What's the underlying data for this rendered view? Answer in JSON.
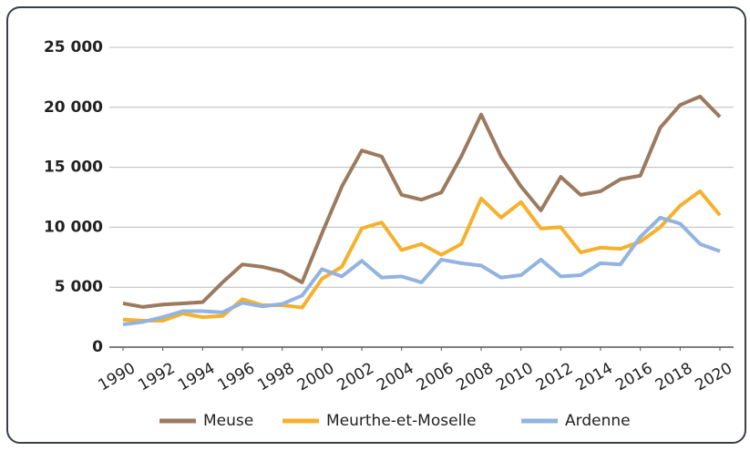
{
  "chart_data": {
    "type": "line",
    "x": [
      1990,
      1991,
      1992,
      1993,
      1994,
      1995,
      1996,
      1997,
      1998,
      1999,
      2000,
      2001,
      2002,
      2003,
      2004,
      2005,
      2006,
      2007,
      2008,
      2009,
      2010,
      2011,
      2012,
      2013,
      2014,
      2015,
      2016,
      2017,
      2018,
      2019,
      2020
    ],
    "xlim": [
      1990,
      2020
    ],
    "xticks": [
      1990,
      1992,
      1994,
      1996,
      1998,
      2000,
      2002,
      2004,
      2006,
      2008,
      2010,
      2012,
      2014,
      2016,
      2018,
      2020
    ],
    "ylim": [
      0,
      25000
    ],
    "yticks": [
      0,
      {
        "value": 5000,
        "label": "5 000"
      },
      {
        "value": 10000,
        "label": "10 000"
      },
      {
        "value": 15000,
        "label": "15 000"
      },
      {
        "value": 20000,
        "label": "20 000"
      },
      {
        "value": 25000,
        "label": "25 000"
      }
    ],
    "grid": true,
    "legend": "bottom",
    "series": [
      {
        "name": "Meuse",
        "color": "#9c7a5f",
        "values": [
          3650,
          3350,
          3550,
          3650,
          3750,
          5400,
          6900,
          6700,
          6300,
          5400,
          9500,
          13400,
          16400,
          15900,
          12700,
          12300,
          12900,
          15900,
          19400,
          15900,
          13400,
          11400,
          14200,
          12700,
          13000,
          14000,
          14300,
          18300,
          20200,
          20900,
          19200
        ]
      },
      {
        "name": "Meurthe-et-Moselle",
        "color": "#f5b12c",
        "values": [
          2300,
          2200,
          2200,
          2800,
          2500,
          2600,
          4000,
          3500,
          3500,
          3300,
          5700,
          6700,
          9900,
          10400,
          8100,
          8600,
          7700,
          8600,
          12400,
          10800,
          12100,
          9900,
          10000,
          7900,
          8300,
          8200,
          8800,
          10000,
          11800,
          13000,
          11000
        ]
      },
      {
        "name": "Ardenne",
        "color": "#93b3e0",
        "values": [
          1900,
          2100,
          2500,
          3000,
          3000,
          2900,
          3700,
          3400,
          3600,
          4300,
          6500,
          5900,
          7200,
          5800,
          5900,
          5400,
          7300,
          7000,
          6800,
          5800,
          6000,
          7300,
          5900,
          6000,
          7000,
          6900,
          9200,
          10800,
          10300,
          8600,
          8000
        ]
      }
    ]
  }
}
